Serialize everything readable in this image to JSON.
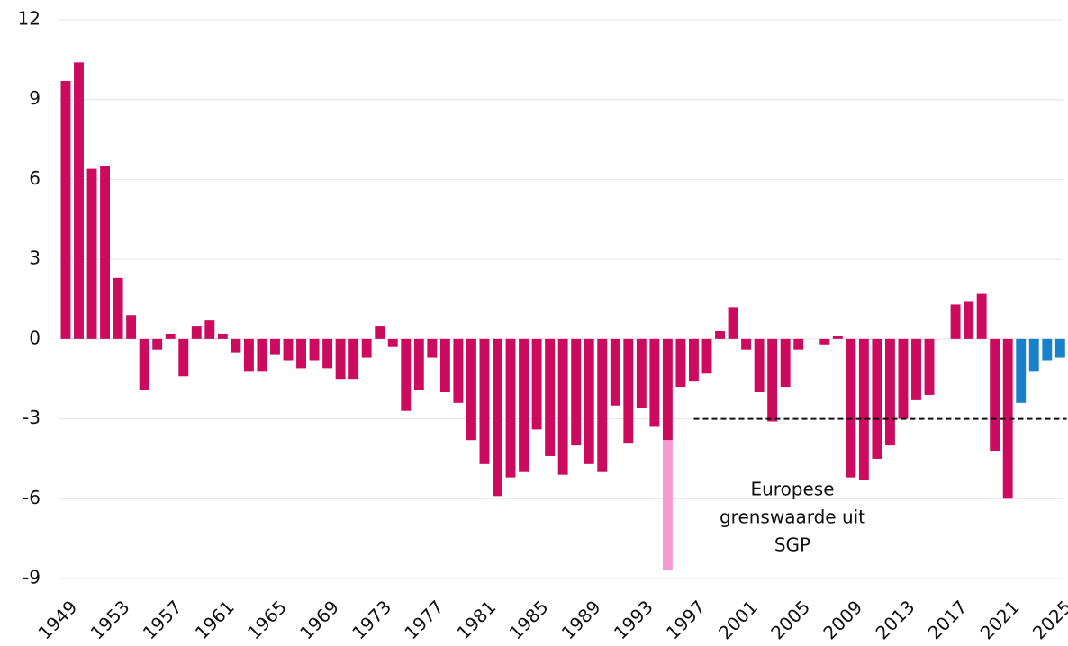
{
  "chart_data": {
    "type": "bar",
    "stacked": true,
    "x": [
      1949,
      1950,
      1951,
      1952,
      1953,
      1954,
      1955,
      1956,
      1957,
      1958,
      1959,
      1960,
      1961,
      1962,
      1963,
      1964,
      1965,
      1966,
      1967,
      1968,
      1969,
      1970,
      1971,
      1972,
      1973,
      1974,
      1975,
      1976,
      1977,
      1978,
      1979,
      1980,
      1981,
      1982,
      1983,
      1984,
      1985,
      1986,
      1987,
      1988,
      1989,
      1990,
      1991,
      1992,
      1993,
      1994,
      1995,
      1996,
      1997,
      1998,
      1999,
      2000,
      2001,
      2002,
      2003,
      2004,
      2005,
      2006,
      2007,
      2008,
      2009,
      2010,
      2011,
      2012,
      2013,
      2014,
      2015,
      2016,
      2017,
      2018,
      2019,
      2020,
      2021,
      2022,
      2023,
      2024,
      2025
    ],
    "series": [
      {
        "color": "#cc0a5e",
        "values": [
          9.7,
          10.4,
          6.4,
          6.5,
          2.3,
          0.9,
          -1.9,
          -0.4,
          0.2,
          -1.4,
          0.5,
          0.7,
          0.2,
          -0.5,
          -1.2,
          -1.2,
          -0.6,
          -0.8,
          -1.1,
          -0.8,
          -1.1,
          -1.5,
          -1.5,
          -0.7,
          0.5,
          -0.3,
          -2.7,
          -1.9,
          -0.7,
          -2.0,
          -2.4,
          -3.8,
          -4.7,
          -5.9,
          -5.2,
          -5.0,
          -3.4,
          -4.4,
          -5.1,
          -4.0,
          -4.7,
          -5.0,
          -2.5,
          -3.9,
          -2.6,
          -3.3,
          -3.8,
          -1.8,
          -1.6,
          -1.3,
          0.3,
          1.2,
          -0.4,
          -2.0,
          -3.1,
          -1.8,
          -0.4,
          0,
          -0.2,
          0.1,
          -5.2,
          -5.3,
          -4.5,
          -4.0,
          -3.0,
          -2.3,
          -2.1,
          0,
          1.3,
          1.4,
          1.7,
          -4.2,
          -6.0,
          null,
          null,
          null,
          null
        ]
      },
      {
        "color": "#f29bd2",
        "values": [
          null,
          null,
          null,
          null,
          null,
          null,
          null,
          null,
          null,
          null,
          null,
          null,
          null,
          null,
          null,
          null,
          null,
          null,
          null,
          null,
          null,
          null,
          null,
          null,
          null,
          null,
          null,
          null,
          null,
          null,
          null,
          null,
          null,
          null,
          null,
          null,
          null,
          null,
          null,
          null,
          null,
          null,
          null,
          null,
          null,
          null,
          -4.9,
          null,
          null,
          null,
          null,
          null,
          null,
          null,
          null,
          null,
          null,
          null,
          null,
          null,
          null,
          null,
          null,
          null,
          null,
          null,
          null,
          null,
          null,
          null,
          null,
          null,
          null,
          null,
          null,
          null,
          null
        ]
      },
      {
        "color": "#1a80cc",
        "values": [
          null,
          null,
          null,
          null,
          null,
          null,
          null,
          null,
          null,
          null,
          null,
          null,
          null,
          null,
          null,
          null,
          null,
          null,
          null,
          null,
          null,
          null,
          null,
          null,
          null,
          null,
          null,
          null,
          null,
          null,
          null,
          null,
          null,
          null,
          null,
          null,
          null,
          null,
          null,
          null,
          null,
          null,
          null,
          null,
          null,
          null,
          null,
          null,
          null,
          null,
          null,
          null,
          null,
          null,
          null,
          null,
          null,
          null,
          null,
          null,
          null,
          null,
          null,
          null,
          null,
          null,
          null,
          null,
          null,
          null,
          null,
          null,
          null,
          -2.4,
          -1.2,
          -0.8,
          -0.7
        ]
      }
    ],
    "xlim": [
      1948.5,
      2025.5
    ],
    "xticks": [
      1949,
      1953,
      1957,
      1961,
      1965,
      1969,
      1973,
      1977,
      1981,
      1985,
      1989,
      1993,
      1997,
      2001,
      2005,
      2009,
      2013,
      2017,
      2021,
      2025
    ],
    "ylim": [
      -9,
      12
    ],
    "yticks": [
      -9,
      -6,
      -3,
      0,
      3,
      6,
      9,
      12
    ],
    "grid": true,
    "reference_line": {
      "value": -3,
      "start": 1997,
      "end": 2025.5
    },
    "annotation": [
      "Europese",
      "grenswaarde uit",
      "SGP"
    ]
  }
}
